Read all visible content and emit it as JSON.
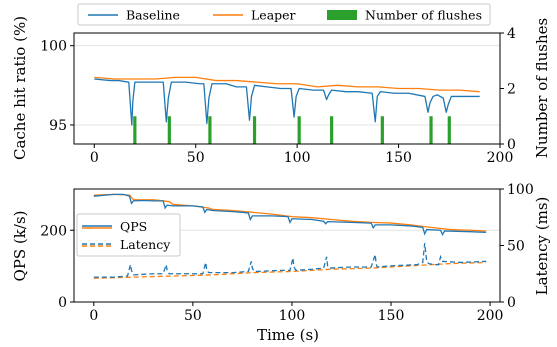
{
  "colors": {
    "blue": "#1f77b4",
    "orange": "#ff7f0e",
    "green": "#2ca02c"
  },
  "legend_top": [
    "Baseline",
    "Leaper",
    "Number of flushes"
  ],
  "legend_bottom": [
    "QPS",
    "Latency"
  ],
  "chart_data": [
    {
      "type": "line",
      "panel": "top",
      "xlabel": "",
      "ylabel": "Cache hit ratio (%)",
      "y2label": "Number of flushes",
      "xlim": [
        -10,
        200
      ],
      "ylim": [
        93.8,
        100.8
      ],
      "y2lim": [
        0,
        4
      ],
      "xticks": [
        0,
        50,
        100,
        150,
        200
      ],
      "yticks": [
        95,
        100
      ],
      "y2ticks": [
        0,
        2,
        4
      ],
      "legend": "top (outside)",
      "series": [
        {
          "name": "Baseline",
          "color": "blue",
          "x": [
            0,
            8,
            12,
            17,
            18.5,
            19,
            20,
            25,
            30,
            34,
            35.5,
            36.5,
            38,
            45,
            52,
            54,
            55.5,
            56.5,
            58,
            65,
            70,
            75,
            76.5,
            77.5,
            79,
            85,
            92,
            97,
            98.5,
            99.5,
            101,
            108,
            113,
            114.5,
            115.5,
            117,
            124,
            130,
            137,
            138.5,
            139.5,
            141,
            148,
            155,
            163,
            164.5,
            165.5,
            167,
            169,
            172,
            173.5,
            174.5,
            176,
            183,
            190
          ],
          "y": [
            97.9,
            97.8,
            97.8,
            97.7,
            95.0,
            96.5,
            97.7,
            97.7,
            97.7,
            97.7,
            95.2,
            96.7,
            97.7,
            97.7,
            97.6,
            97.6,
            95.1,
            96.7,
            97.6,
            97.6,
            97.4,
            97.4,
            95.3,
            96.8,
            97.5,
            97.4,
            97.3,
            97.3,
            95.5,
            96.8,
            97.3,
            97.2,
            97.2,
            96.6,
            96.9,
            97.2,
            97.1,
            97.1,
            97.0,
            95.2,
            96.8,
            97.1,
            97.0,
            97.0,
            96.8,
            95.8,
            96.4,
            96.8,
            96.9,
            96.7,
            95.8,
            96.3,
            96.8,
            96.8,
            96.8
          ]
        },
        {
          "name": "Leaper",
          "color": "orange",
          "x": [
            0,
            10,
            20,
            30,
            40,
            50,
            60,
            70,
            80,
            90,
            100,
            110,
            120,
            130,
            140,
            150,
            160,
            170,
            180,
            190
          ],
          "y": [
            98.0,
            97.9,
            97.9,
            97.9,
            98.0,
            98.0,
            97.8,
            97.8,
            97.7,
            97.6,
            97.6,
            97.4,
            97.5,
            97.4,
            97.4,
            97.3,
            97.3,
            97.2,
            97.2,
            97.1
          ]
        },
        {
          "name": "Number of flushes",
          "color": "green",
          "type": "bar",
          "axis": "right",
          "x": [
            20,
            37,
            57,
            79,
            101,
            117,
            142,
            166,
            175
          ],
          "values": [
            1,
            1,
            1,
            1,
            1,
            1,
            1,
            1,
            1
          ]
        }
      ]
    },
    {
      "type": "line",
      "panel": "bottom",
      "xlabel": "Time (s)",
      "ylabel": "QPS (k/s)",
      "y2label": "Latency (ms)",
      "xlim": [
        -10,
        205
      ],
      "ylim": [
        0,
        315
      ],
      "y2lim": [
        0,
        100
      ],
      "xticks": [
        0,
        50,
        100,
        150,
        200
      ],
      "yticks": [
        0,
        200
      ],
      "y2ticks": [
        0,
        50,
        100
      ],
      "legend": "left",
      "series": [
        {
          "name": "QPS",
          "axis": "left",
          "baseline_color": "blue",
          "leaper_color": "orange",
          "baseline": {
            "x": [
              0,
              10,
              15,
              18,
              19,
              20,
              25,
              30,
              35,
              36,
              37,
              40,
              50,
              55,
              56,
              57,
              60,
              70,
              75,
              78,
              79,
              80,
              90,
              98,
              99,
              100,
              110,
              116,
              117,
              118,
              130,
              140,
              141,
              142,
              150,
              160,
              166,
              167,
              168,
              175,
              176,
              177,
              190,
              198
            ],
            "y": [
              295,
              300,
              300,
              295,
              275,
              282,
              283,
              282,
              282,
              262,
              270,
              268,
              268,
              265,
              250,
              258,
              255,
              252,
              250,
              248,
              230,
              240,
              240,
              238,
              222,
              232,
              230,
              225,
              218,
              224,
              222,
              220,
              207,
              215,
              215,
              212,
              208,
              190,
              202,
              200,
              188,
              198,
              196,
              194
            ]
          },
          "leaper": {
            "x": [
              0,
              10,
              18,
              20,
              30,
              38,
              40,
              50,
              58,
              60,
              70,
              80,
              90,
              100,
              110,
              120,
              130,
              140,
              150,
              160,
              170,
              180,
              190,
              198
            ],
            "y": [
              298,
              300,
              298,
              285,
              285,
              280,
              272,
              268,
              262,
              258,
              255,
              250,
              245,
              238,
              235,
              230,
              225,
              222,
              220,
              215,
              208,
              202,
              200,
              198
            ]
          }
        },
        {
          "name": "Latency",
          "axis": "right",
          "baseline": {
            "x": [
              0,
              10,
              17,
              18.5,
              19,
              20,
              30,
              35,
              36.5,
              37,
              38,
              50,
              55,
              56.5,
              57,
              58,
              70,
              78,
              79.5,
              80,
              81,
              95,
              99,
              100.5,
              101,
              102,
              110,
              116,
              117.5,
              118,
              119,
              130,
              140,
              142,
              142.5,
              143,
              150,
              163,
              166,
              167,
              168,
              169,
              172,
              174,
              175,
              176,
              185,
              198
            ],
            "y": [
              22,
              22,
              23,
              33,
              28,
              24,
              25,
              25,
              33,
              28,
              25,
              25,
              25,
              35,
              28,
              26,
              26,
              27,
              36,
              30,
              27,
              28,
              28,
              39,
              31,
              28,
              29,
              30,
              40,
              32,
              30,
              31,
              31,
              42,
              34,
              31,
              32,
              33,
              35,
              52,
              36,
              34,
              33,
              33,
              40,
              36,
              35,
              36
            ]
          },
          "leaper": {
            "x": [
              0,
              20,
              40,
              60,
              80,
              100,
              120,
              140,
              160,
              180,
              198
            ],
            "y": [
              21,
              22,
              23,
              24,
              26,
              27,
              29,
              30,
              32,
              34,
              35
            ]
          }
        }
      ]
    }
  ]
}
